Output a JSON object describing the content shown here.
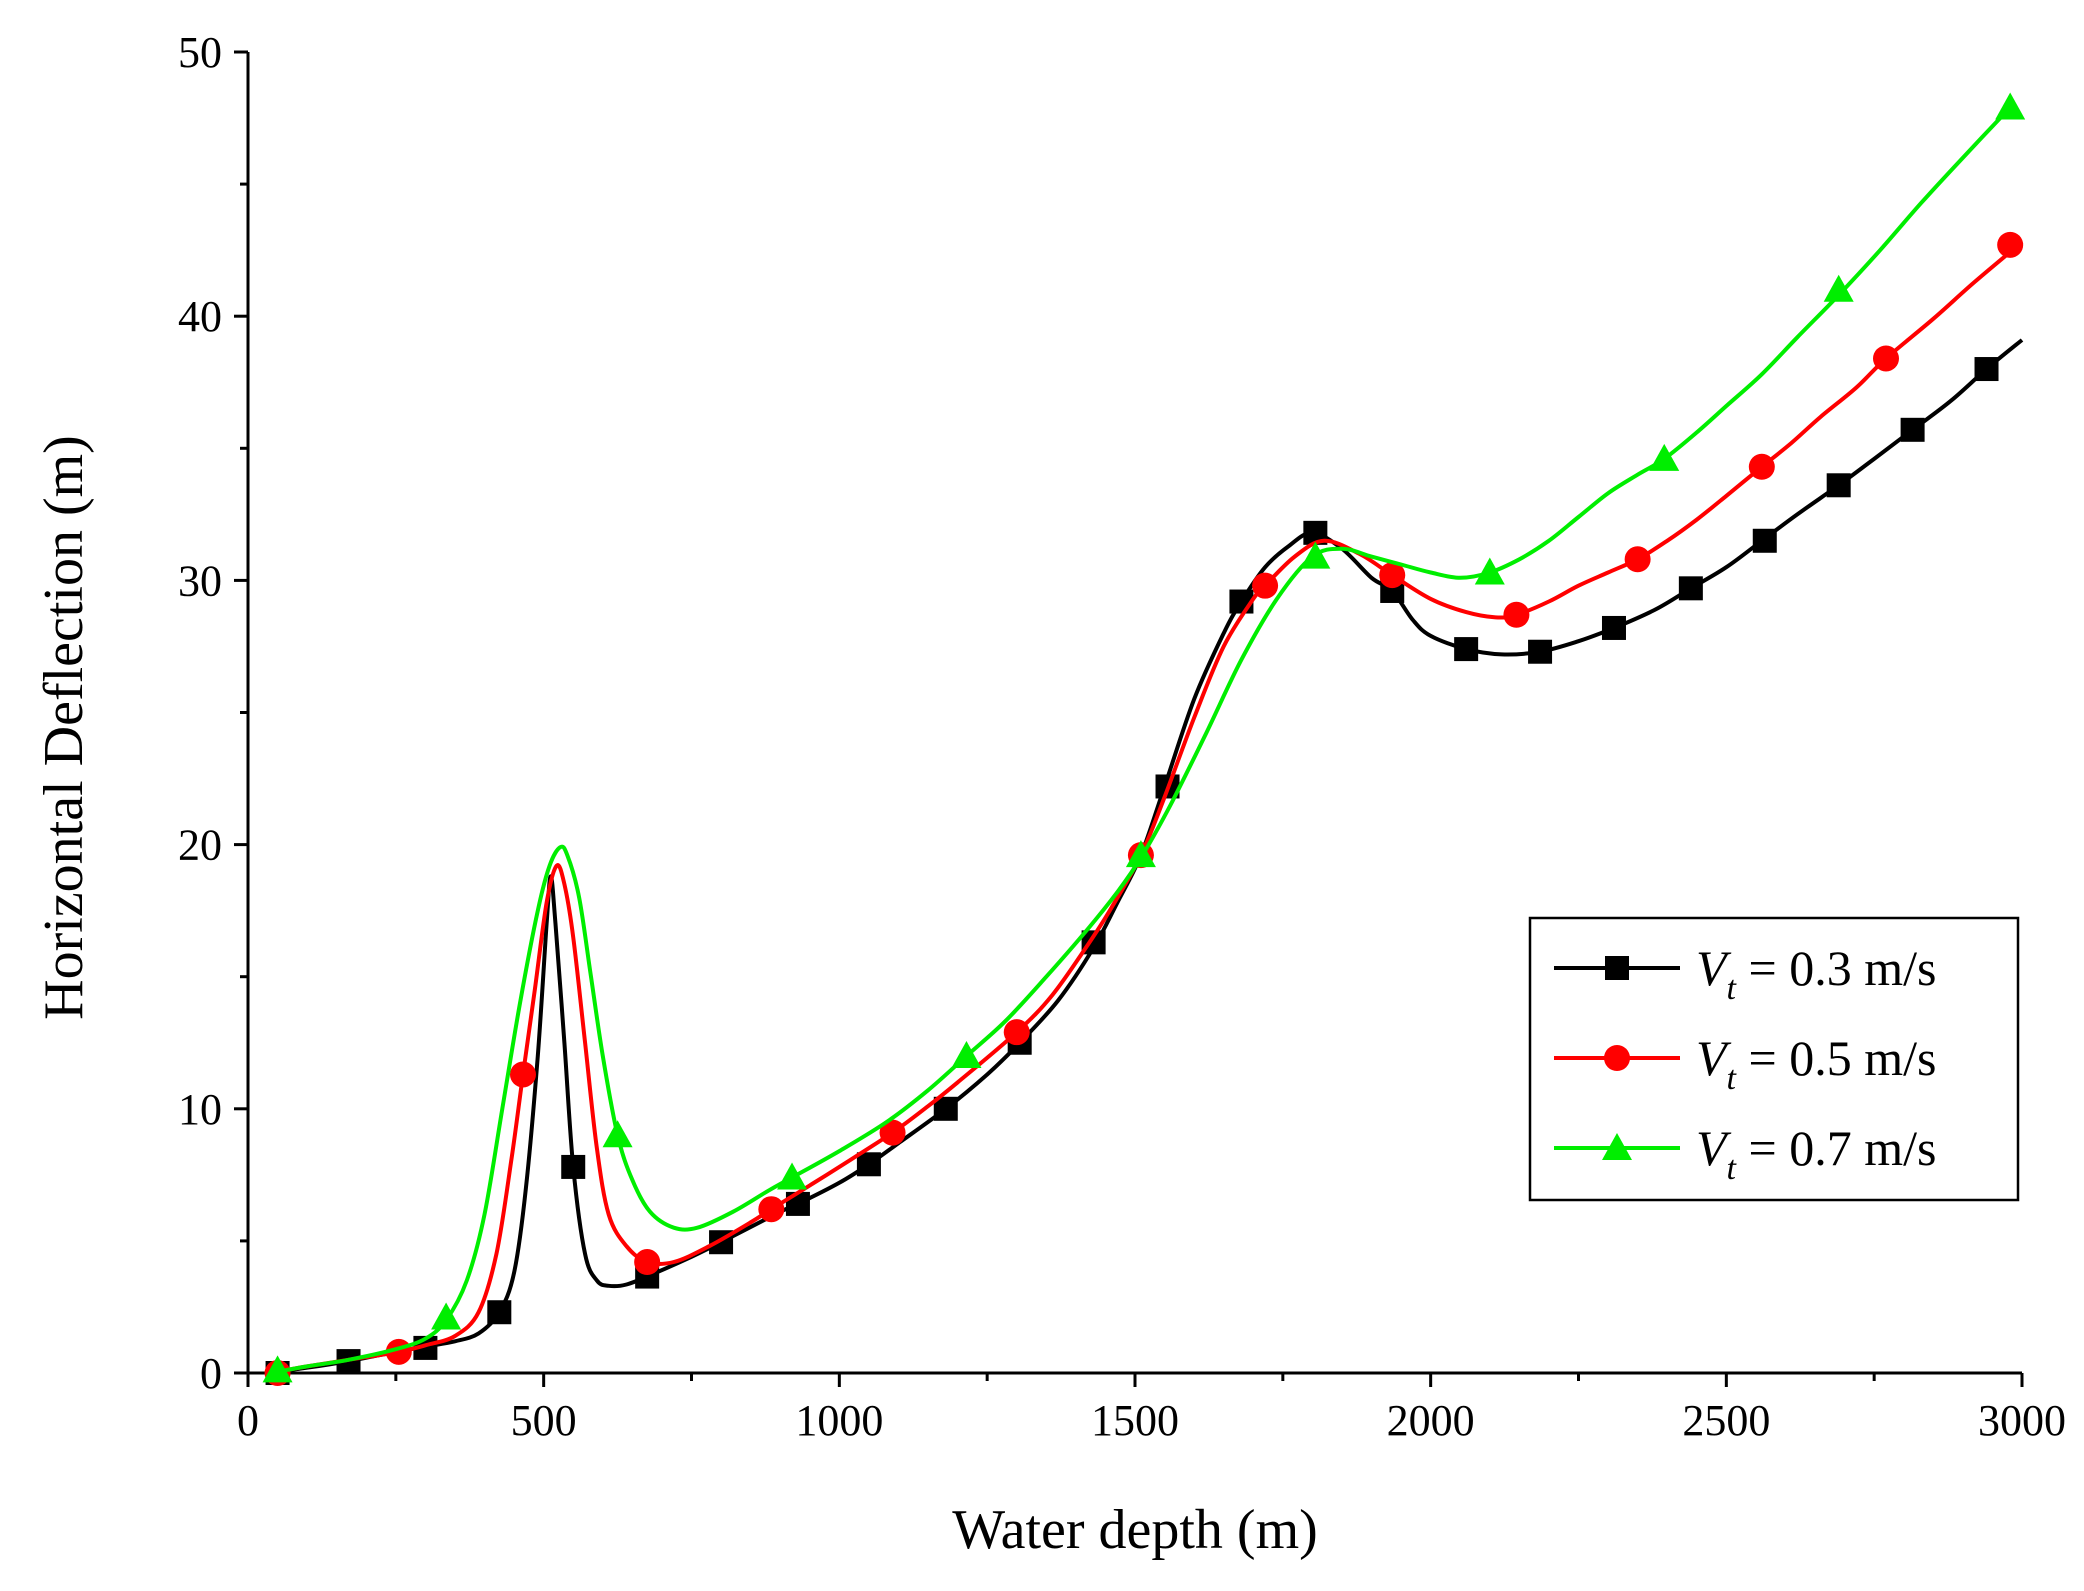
{
  "chart_data": {
    "type": "line",
    "title": "",
    "xlabel": "Water depth (m)",
    "ylabel": "Horizontal Deflection (m)",
    "xlim": [
      0,
      3000
    ],
    "ylim": [
      0,
      50
    ],
    "xticks": [
      0,
      500,
      1000,
      1500,
      2000,
      2500,
      3000
    ],
    "yticks": [
      0,
      10,
      20,
      30,
      40,
      50
    ],
    "grid": false,
    "legend_position": "center-right",
    "series": [
      {
        "name": "Vt = 0.3 m/s",
        "legend_var": "V",
        "legend_sub": "t",
        "legend_rest": " = 0.3 m/s",
        "color": "#000000",
        "marker": "square",
        "curve": [
          [
            50,
            0.05
          ],
          [
            100,
            0.2
          ],
          [
            170,
            0.45
          ],
          [
            250,
            0.8
          ],
          [
            300,
            1.0
          ],
          [
            350,
            1.2
          ],
          [
            390,
            1.5
          ],
          [
            425,
            2.3
          ],
          [
            450,
            3.8
          ],
          [
            470,
            7.0
          ],
          [
            490,
            12.0
          ],
          [
            505,
            17.0
          ],
          [
            512,
            18.8
          ],
          [
            520,
            17.0
          ],
          [
            535,
            12.5
          ],
          [
            550,
            7.8
          ],
          [
            570,
            4.5
          ],
          [
            590,
            3.5
          ],
          [
            610,
            3.3
          ],
          [
            640,
            3.35
          ],
          [
            680,
            3.7
          ],
          [
            750,
            4.4
          ],
          [
            800,
            4.95
          ],
          [
            900,
            6.1
          ],
          [
            930,
            6.4
          ],
          [
            1000,
            7.2
          ],
          [
            1050,
            7.9
          ],
          [
            1100,
            8.7
          ],
          [
            1180,
            10.0
          ],
          [
            1250,
            11.3
          ],
          [
            1305,
            12.5
          ],
          [
            1370,
            14.1
          ],
          [
            1430,
            16.1
          ],
          [
            1470,
            17.8
          ],
          [
            1510,
            19.6
          ],
          [
            1550,
            22.2
          ],
          [
            1600,
            25.5
          ],
          [
            1650,
            28.0
          ],
          [
            1680,
            29.2
          ],
          [
            1720,
            30.5
          ],
          [
            1760,
            31.3
          ],
          [
            1800,
            31.8
          ],
          [
            1850,
            31.2
          ],
          [
            1900,
            30.1
          ],
          [
            1935,
            29.6
          ],
          [
            1970,
            28.5
          ],
          [
            2000,
            27.9
          ],
          [
            2060,
            27.4
          ],
          [
            2120,
            27.2
          ],
          [
            2185,
            27.3
          ],
          [
            2250,
            27.7
          ],
          [
            2310,
            28.2
          ],
          [
            2380,
            28.9
          ],
          [
            2440,
            29.7
          ],
          [
            2500,
            30.5
          ],
          [
            2560,
            31.5
          ],
          [
            2620,
            32.5
          ],
          [
            2690,
            33.6
          ],
          [
            2750,
            34.6
          ],
          [
            2815,
            35.7
          ],
          [
            2880,
            36.8
          ],
          [
            2940,
            38.0
          ],
          [
            3000,
            39.1
          ]
        ],
        "markers": [
          [
            50,
            0.0
          ],
          [
            170,
            0.45
          ],
          [
            300,
            0.95
          ],
          [
            425,
            2.3
          ],
          [
            550,
            7.8
          ],
          [
            675,
            3.65
          ],
          [
            800,
            4.95
          ],
          [
            930,
            6.4
          ],
          [
            1050,
            7.9
          ],
          [
            1180,
            10.0
          ],
          [
            1305,
            12.5
          ],
          [
            1430,
            16.3
          ],
          [
            1555,
            22.2
          ],
          [
            1680,
            29.2
          ],
          [
            1805,
            31.8
          ],
          [
            1935,
            29.6
          ],
          [
            2060,
            27.4
          ],
          [
            2185,
            27.3
          ],
          [
            2310,
            28.2
          ],
          [
            2440,
            29.7
          ],
          [
            2565,
            31.5
          ],
          [
            2690,
            33.6
          ],
          [
            2815,
            35.7
          ],
          [
            2940,
            38.0
          ]
        ]
      },
      {
        "name": "Vt = 0.5 m/s",
        "legend_var": "V",
        "legend_sub": "t",
        "legend_rest": " = 0.5 m/s",
        "color": "#ff0000",
        "marker": "circle",
        "curve": [
          [
            50,
            0.05
          ],
          [
            100,
            0.25
          ],
          [
            170,
            0.5
          ],
          [
            255,
            0.8
          ],
          [
            300,
            1.05
          ],
          [
            350,
            1.4
          ],
          [
            390,
            2.3
          ],
          [
            420,
            4.5
          ],
          [
            445,
            8.0
          ],
          [
            465,
            11.3
          ],
          [
            485,
            14.5
          ],
          [
            505,
            17.8
          ],
          [
            522,
            19.2
          ],
          [
            535,
            18.5
          ],
          [
            550,
            16.5
          ],
          [
            570,
            12.5
          ],
          [
            590,
            8.5
          ],
          [
            610,
            6.0
          ],
          [
            640,
            4.8
          ],
          [
            675,
            4.2
          ],
          [
            720,
            4.2
          ],
          [
            780,
            4.8
          ],
          [
            850,
            5.7
          ],
          [
            885,
            6.2
          ],
          [
            950,
            7.1
          ],
          [
            1000,
            7.8
          ],
          [
            1090,
            9.1
          ],
          [
            1150,
            10.1
          ],
          [
            1200,
            11.0
          ],
          [
            1300,
            12.9
          ],
          [
            1360,
            14.3
          ],
          [
            1420,
            16.2
          ],
          [
            1460,
            17.6
          ],
          [
            1510,
            19.6
          ],
          [
            1550,
            21.8
          ],
          [
            1600,
            24.8
          ],
          [
            1650,
            27.5
          ],
          [
            1700,
            29.3
          ],
          [
            1720,
            29.8
          ],
          [
            1770,
            30.9
          ],
          [
            1820,
            31.5
          ],
          [
            1880,
            31.0
          ],
          [
            1935,
            30.2
          ],
          [
            2000,
            29.3
          ],
          [
            2060,
            28.8
          ],
          [
            2110,
            28.6
          ],
          [
            2145,
            28.7
          ],
          [
            2200,
            29.2
          ],
          [
            2250,
            29.8
          ],
          [
            2300,
            30.3
          ],
          [
            2350,
            30.8
          ],
          [
            2400,
            31.5
          ],
          [
            2450,
            32.3
          ],
          [
            2500,
            33.2
          ],
          [
            2560,
            34.3
          ],
          [
            2610,
            35.2
          ],
          [
            2660,
            36.2
          ],
          [
            2720,
            37.3
          ],
          [
            2770,
            38.4
          ],
          [
            2850,
            39.9
          ],
          [
            2920,
            41.3
          ],
          [
            3000,
            42.8
          ]
        ],
        "markers": [
          [
            50,
            0.0
          ],
          [
            255,
            0.8
          ],
          [
            465,
            11.3
          ],
          [
            675,
            4.2
          ],
          [
            885,
            6.2
          ],
          [
            1090,
            9.1
          ],
          [
            1300,
            12.9
          ],
          [
            1510,
            19.6
          ],
          [
            1720,
            29.8
          ],
          [
            1935,
            30.2
          ],
          [
            2145,
            28.7
          ],
          [
            2350,
            30.8
          ],
          [
            2560,
            34.3
          ],
          [
            2770,
            38.4
          ],
          [
            2980,
            42.7
          ]
        ]
      },
      {
        "name": "Vt = 0.7 m/s",
        "legend_var": "V",
        "legend_sub": "t",
        "legend_rest": " = 0.7 m/s",
        "color": "#00ee00",
        "marker": "triangle",
        "curve": [
          [
            50,
            0.05
          ],
          [
            100,
            0.25
          ],
          [
            170,
            0.5
          ],
          [
            250,
            0.9
          ],
          [
            300,
            1.3
          ],
          [
            335,
            2.0
          ],
          [
            370,
            3.5
          ],
          [
            400,
            6.0
          ],
          [
            430,
            10.0
          ],
          [
            460,
            14.0
          ],
          [
            490,
            17.5
          ],
          [
            510,
            19.2
          ],
          [
            528,
            19.9
          ],
          [
            540,
            19.6
          ],
          [
            560,
            18.0
          ],
          [
            580,
            15.0
          ],
          [
            600,
            12.0
          ],
          [
            625,
            9.0
          ],
          [
            650,
            7.3
          ],
          [
            680,
            6.1
          ],
          [
            720,
            5.5
          ],
          [
            760,
            5.5
          ],
          [
            820,
            6.1
          ],
          [
            880,
            6.9
          ],
          [
            920,
            7.4
          ],
          [
            1000,
            8.4
          ],
          [
            1080,
            9.5
          ],
          [
            1150,
            10.7
          ],
          [
            1215,
            12.0
          ],
          [
            1280,
            13.3
          ],
          [
            1350,
            15.0
          ],
          [
            1420,
            16.8
          ],
          [
            1470,
            18.2
          ],
          [
            1510,
            19.5
          ],
          [
            1560,
            21.5
          ],
          [
            1620,
            24.2
          ],
          [
            1680,
            27.0
          ],
          [
            1740,
            29.3
          ],
          [
            1800,
            30.9
          ],
          [
            1850,
            31.2
          ],
          [
            1900,
            30.9
          ],
          [
            1950,
            30.6
          ],
          [
            2000,
            30.3
          ],
          [
            2050,
            30.1
          ],
          [
            2100,
            30.3
          ],
          [
            2150,
            30.8
          ],
          [
            2200,
            31.5
          ],
          [
            2250,
            32.4
          ],
          [
            2300,
            33.3
          ],
          [
            2350,
            34.0
          ],
          [
            2395,
            34.6
          ],
          [
            2450,
            35.6
          ],
          [
            2500,
            36.6
          ],
          [
            2560,
            37.8
          ],
          [
            2620,
            39.2
          ],
          [
            2690,
            40.8
          ],
          [
            2760,
            42.5
          ],
          [
            2830,
            44.3
          ],
          [
            2900,
            46.0
          ],
          [
            2980,
            47.9
          ]
        ],
        "markers": [
          [
            50,
            0.1
          ],
          [
            335,
            2.1
          ],
          [
            625,
            9.0
          ],
          [
            920,
            7.4
          ],
          [
            1215,
            12.0
          ],
          [
            1510,
            19.6
          ],
          [
            1805,
            30.9
          ],
          [
            2100,
            30.3
          ],
          [
            2395,
            34.6
          ],
          [
            2690,
            41.0
          ],
          [
            2980,
            47.9
          ]
        ]
      }
    ]
  }
}
